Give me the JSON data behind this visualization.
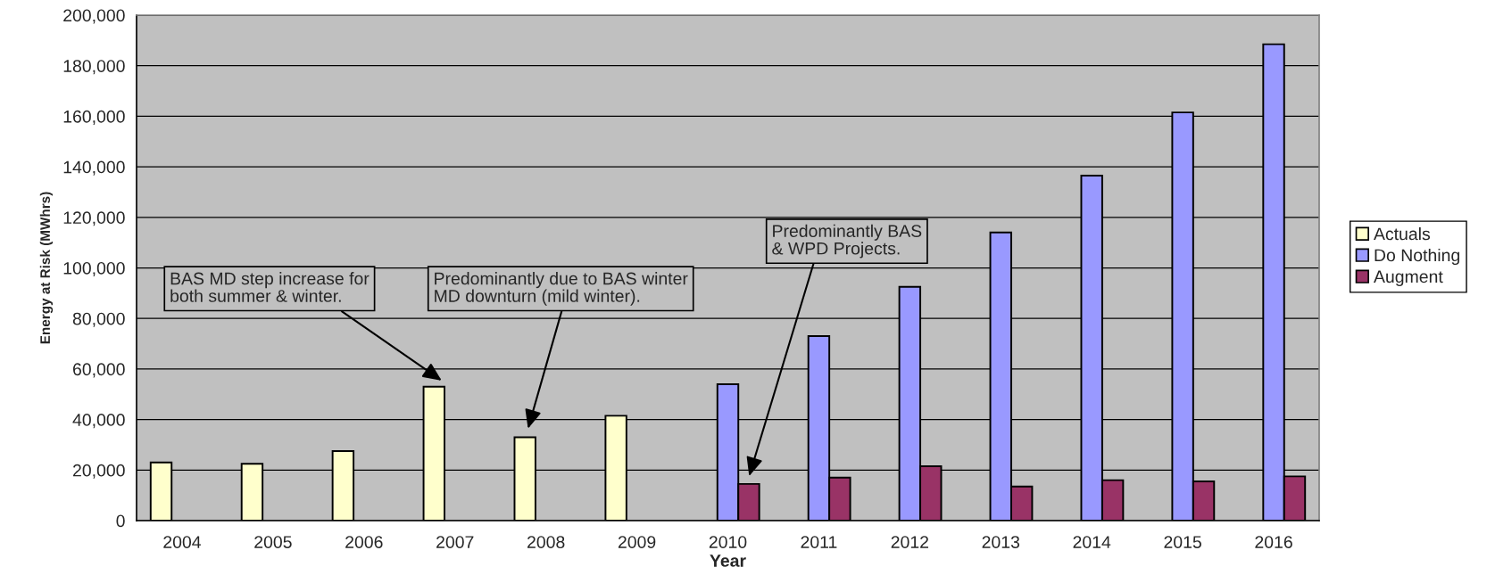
{
  "chart_data": {
    "type": "bar",
    "xlabel": "Year",
    "ylabel": "Energy at Risk (MWhrs)",
    "categories": [
      "2004",
      "2005",
      "2006",
      "2007",
      "2008",
      "2009",
      "2010",
      "2011",
      "2012",
      "2013",
      "2014",
      "2015",
      "2016"
    ],
    "series": [
      {
        "name": "Actuals",
        "color": "#ffffcc",
        "values": [
          23000,
          22500,
          27500,
          53000,
          33000,
          41500,
          null,
          null,
          null,
          null,
          null,
          null,
          null
        ]
      },
      {
        "name": "Do Nothing",
        "color": "#9999ff",
        "values": [
          null,
          null,
          null,
          null,
          null,
          null,
          54000,
          73000,
          92500,
          114000,
          136500,
          161500,
          188500
        ]
      },
      {
        "name": "Augment",
        "color": "#993366",
        "values": [
          null,
          null,
          null,
          null,
          null,
          null,
          14500,
          17000,
          21500,
          13500,
          16000,
          15500,
          17500
        ]
      }
    ],
    "ylim": [
      0,
      200000
    ],
    "yticks": [
      0,
      {
        "value": 20000,
        "label": "20,000"
      },
      {
        "value": 40000,
        "label": "40,000"
      },
      {
        "value": 60000,
        "label": "60,000"
      },
      {
        "value": 80000,
        "label": "80,000"
      },
      {
        "value": 100000,
        "label": "100,000"
      },
      {
        "value": 120000,
        "label": "120,000"
      },
      {
        "value": 140000,
        "label": "140,000"
      },
      {
        "value": 160000,
        "label": "160,000"
      },
      {
        "value": 180000,
        "label": "180,000"
      },
      {
        "value": 200000,
        "label": "200,000"
      }
    ],
    "grid": "y",
    "legend": "right",
    "annotations": [
      "BAS MD step increase for\nboth summer & winter.",
      "Predominantly due to BAS winter\nMD downturn (mild winter).",
      "Predominantly BAS\n& WPD Projects."
    ]
  }
}
